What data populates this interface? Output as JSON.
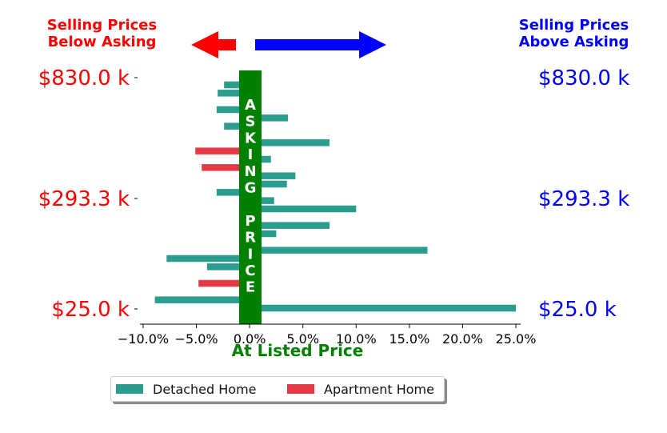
{
  "header": {
    "left_line1": "Selling Prices",
    "left_line2": "Below Asking",
    "right_line1": "Selling Prices",
    "right_line2": "Above Asking"
  },
  "colors": {
    "below": "#ff0000",
    "above": "#0000ff",
    "asking": "#008000",
    "detached": "#2a9d8f",
    "apartment": "#e63946"
  },
  "asking_band": {
    "letters": [
      "A",
      "S",
      "K",
      "I",
      "N",
      "G",
      "",
      "P",
      "R",
      "I",
      "C",
      "E"
    ]
  },
  "legend": {
    "detached_label": "Detached Home",
    "apartment_label": "Apartment Home"
  },
  "chart_data": {
    "type": "bar",
    "orientation": "horizontal",
    "xlabel": "At Listed Price",
    "xlim": [
      -10,
      25
    ],
    "xticks": [
      "−10.0%",
      "−5.0%",
      "0.0%",
      "5.0%",
      "10.0%",
      "15.0%",
      "20.0%",
      "25.0%"
    ],
    "xtick_values": [
      -10,
      -5,
      0,
      5,
      10,
      15,
      20,
      25
    ],
    "ylim": [
      25,
      830
    ],
    "yticks_left": [
      "$830.0 k",
      "$293.3 k",
      "$25.0 k"
    ],
    "yticks_right": [
      "$830.0 k",
      "$293.3 k",
      "$25.0 k"
    ],
    "grid": false,
    "legend_position": "bottom",
    "bars": [
      {
        "price_rank": 1,
        "pct": -2.4,
        "series": "Detached Home"
      },
      {
        "price_rank": 2,
        "pct": -3.0,
        "series": "Detached Home"
      },
      {
        "price_rank": 3,
        "pct": 1.0,
        "series": "Detached Home"
      },
      {
        "price_rank": 4,
        "pct": -3.1,
        "series": "Detached Home"
      },
      {
        "price_rank": 5,
        "pct": 3.6,
        "series": "Detached Home"
      },
      {
        "price_rank": 6,
        "pct": -2.4,
        "series": "Detached Home"
      },
      {
        "price_rank": 7,
        "pct": 1.0,
        "series": "Detached Home"
      },
      {
        "price_rank": 8,
        "pct": 7.5,
        "series": "Detached Home"
      },
      {
        "price_rank": 9,
        "pct": -5.1,
        "series": "Apartment Home"
      },
      {
        "price_rank": 10,
        "pct": 2.0,
        "series": "Detached Home"
      },
      {
        "price_rank": 11,
        "pct": -4.5,
        "series": "Apartment Home"
      },
      {
        "price_rank": 12,
        "pct": 4.3,
        "series": "Detached Home"
      },
      {
        "price_rank": 13,
        "pct": 3.5,
        "series": "Detached Home"
      },
      {
        "price_rank": 14,
        "pct": -3.1,
        "series": "Detached Home"
      },
      {
        "price_rank": 15,
        "pct": 2.3,
        "series": "Detached Home"
      },
      {
        "price_rank": 16,
        "pct": 10.0,
        "series": "Detached Home"
      },
      {
        "price_rank": 17,
        "pct": 1.0,
        "series": "Detached Home"
      },
      {
        "price_rank": 18,
        "pct": 7.5,
        "series": "Detached Home"
      },
      {
        "price_rank": 19,
        "pct": 2.5,
        "series": "Detached Home"
      },
      {
        "price_rank": 20,
        "pct": 1.0,
        "series": "Detached Home"
      },
      {
        "price_rank": 21,
        "pct": 16.7,
        "series": "Detached Home"
      },
      {
        "price_rank": 22,
        "pct": -7.8,
        "series": "Detached Home"
      },
      {
        "price_rank": 23,
        "pct": -4.0,
        "series": "Detached Home"
      },
      {
        "price_rank": 24,
        "pct": 1.0,
        "series": "Detached Home"
      },
      {
        "price_rank": 25,
        "pct": -4.8,
        "series": "Apartment Home"
      },
      {
        "price_rank": 26,
        "pct": 1.0,
        "series": "Detached Home"
      },
      {
        "price_rank": 27,
        "pct": -8.9,
        "series": "Detached Home"
      },
      {
        "price_rank": 28,
        "pct": 25.0,
        "series": "Detached Home"
      }
    ]
  }
}
